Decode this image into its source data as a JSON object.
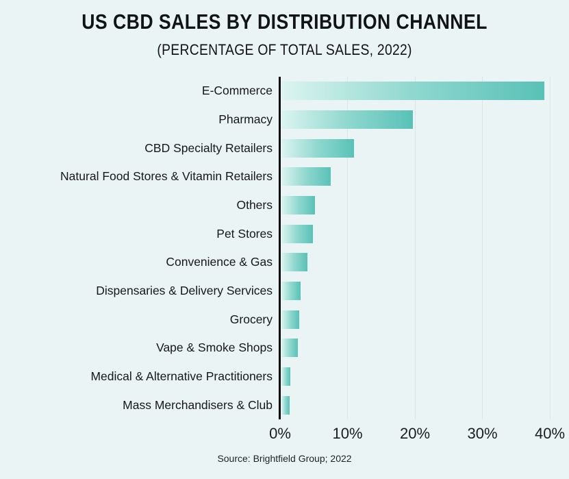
{
  "source": "Source: Brightfield Group; 2022",
  "colors": {
    "background": "#EBF4F4",
    "bar_gradient_start": "#DCF4F0",
    "bar_gradient_mid": "#8FD8CF",
    "bar_gradient_end": "#59C1B7",
    "gridline": "#DCE5E4",
    "axis": "#0B0B0B",
    "text": "#111416"
  },
  "chart_data": {
    "type": "bar",
    "orientation": "horizontal",
    "title": "US CBD SALES BY DISTRIBUTION CHANNEL",
    "subtitle": "(PERCENTAGE OF TOTAL SALES, 2022)",
    "xlabel": "",
    "ylabel": "",
    "categories": [
      "E-Commerce",
      "Pharmacy",
      "CBD Specialty Retailers",
      "Natural Food Stores & Vitamin Retailers",
      "Others",
      "Pet Stores",
      "Convenience & Gas",
      "Dispensaries & Delivery Services",
      "Grocery",
      "Vape & Smoke Shops",
      "Medical & Alternative Practitioners",
      "Mass Merchandisers & Club"
    ],
    "values": [
      39,
      19.5,
      10.8,
      7.3,
      5,
      4.7,
      3.9,
      2.8,
      2.6,
      2.4,
      1.3,
      1.2
    ],
    "xlim": [
      0,
      42
    ],
    "x_tick_values": [
      0,
      10,
      20,
      30,
      40
    ],
    "x_tick_labels": [
      "0%",
      "10%",
      "20%",
      "30%",
      "40%"
    ],
    "grid": true,
    "legend": false
  }
}
